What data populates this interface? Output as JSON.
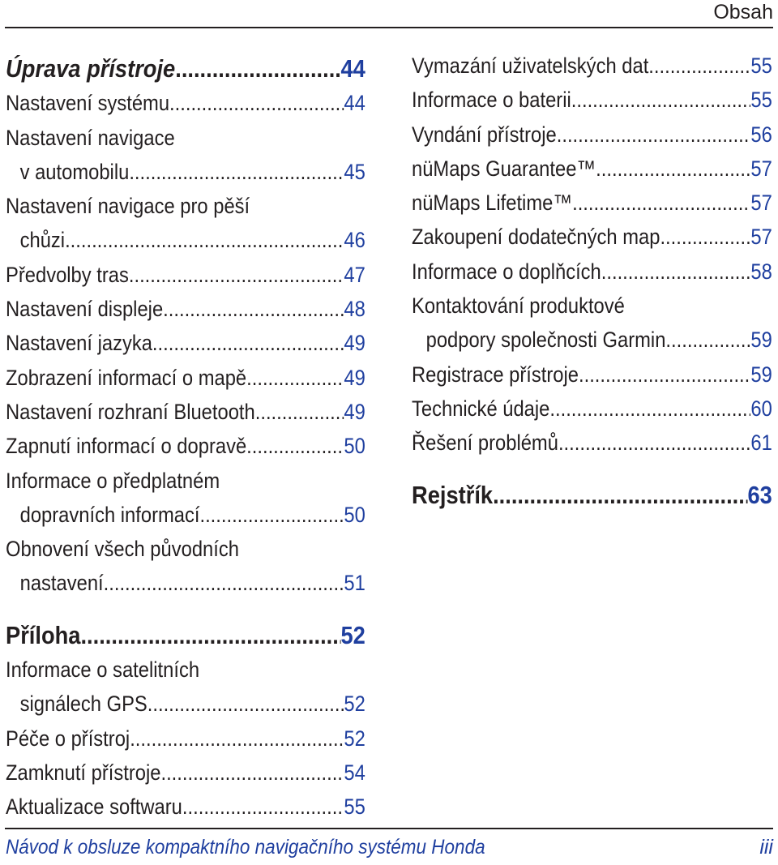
{
  "header": {
    "section": "Obsah"
  },
  "left": {
    "heading1": {
      "text": "Úprava přístroje",
      "page": "44"
    },
    "entries1": [
      {
        "text": "Nastavení systému",
        "page": "44"
      },
      {
        "line1": "Nastavení navigace",
        "text": "v automobilu",
        "page": "45"
      },
      {
        "line1": "Nastavení navigace pro pěší",
        "text": "chůzi",
        "page": "46"
      },
      {
        "text": "Předvolby tras",
        "page": "47"
      },
      {
        "text": "Nastavení displeje",
        "page": "48"
      },
      {
        "text": "Nastavení jazyka",
        "page": "49"
      },
      {
        "text": "Zobrazení informací o mapě",
        "page": "49"
      },
      {
        "text": "Nastavení rozhraní Bluetooth",
        "page": "49"
      },
      {
        "text": "Zapnutí informací o dopravě",
        "page": "50"
      },
      {
        "line1": "Informace o předplatném",
        "text": "dopravních informací",
        "page": "50"
      },
      {
        "line1": "Obnovení všech původních",
        "text": "nastavení",
        "page": "51"
      }
    ],
    "heading2": {
      "text": "Příloha",
      "page": "52"
    },
    "entries2": [
      {
        "line1": "Informace o satelitních",
        "text": "signálech GPS",
        "page": "52"
      },
      {
        "text": "Péče o přístroj",
        "page": "52"
      },
      {
        "text": "Zamknutí přístroje",
        "page": "54"
      },
      {
        "text": "Aktualizace softwaru",
        "page": "55"
      }
    ]
  },
  "right": {
    "entries": [
      {
        "text": "Vymazání uživatelských dat",
        "page": "55"
      },
      {
        "text": "Informace o baterii",
        "page": "55"
      },
      {
        "text": "Vyndání přístroje",
        "page": "56"
      },
      {
        "text": "nüMaps Guarantee™",
        "page": "57"
      },
      {
        "text": "nüMaps Lifetime™",
        "page": "57"
      },
      {
        "text": "Zakoupení dodatečných map",
        "page": "57"
      },
      {
        "text": "Informace o doplňcích",
        "page": "58"
      },
      {
        "line1": "Kontaktování produktové",
        "text": "podpory společnosti Garmin",
        "page": "59"
      },
      {
        "text": "Registrace přístroje",
        "page": "59"
      },
      {
        "text": "Technické údaje",
        "page": "60"
      },
      {
        "text": "Řešení problémů",
        "page": "61"
      }
    ],
    "heading": {
      "text": "Rejstřík",
      "page": "63"
    }
  },
  "footer": {
    "title": "Návod k obsluze kompaktního navigačního systému Honda",
    "page": "iii"
  }
}
